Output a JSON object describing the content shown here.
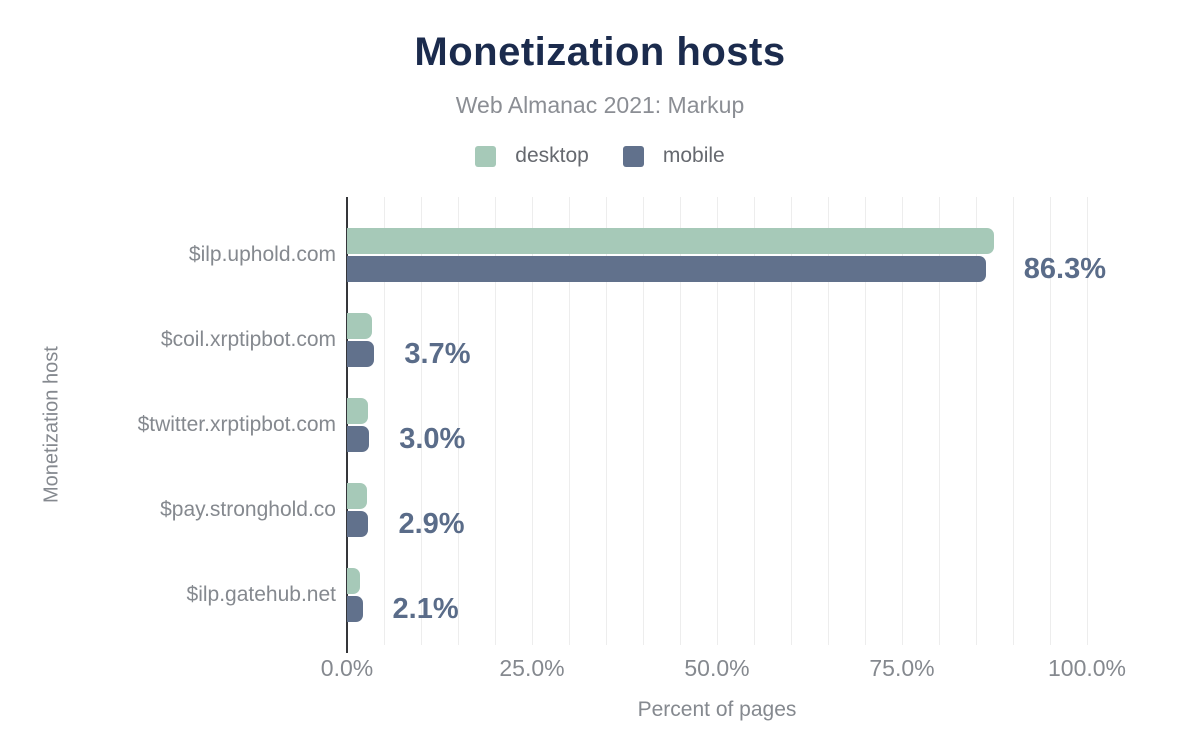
{
  "chart": {
    "title": "Monetization hosts",
    "subtitle": "Web Almanac 2021: Markup",
    "y_axis": {
      "title": "Monetization host"
    },
    "x_axis": {
      "title": "Percent of pages",
      "ticks": [
        "0.0%",
        "25.0%",
        "50.0%",
        "75.0%",
        "100.0%"
      ],
      "tick_values": [
        0,
        25,
        50,
        75,
        100
      ],
      "minor_gridline_step_percent": 5
    },
    "colors": {
      "title": "#1b2b4d",
      "desktop": "#a6c9b8",
      "mobile": "#61718c",
      "value_label": "#5a6c89",
      "axis_text": "#85898f",
      "gridline": "#ededed",
      "axis_line": "#35363a"
    }
  },
  "chart_data": {
    "type": "bar",
    "orientation": "horizontal",
    "title": "Monetization hosts",
    "subtitle": "Web Almanac 2021: Markup",
    "xlabel": "Percent of pages",
    "ylabel": "Monetization host",
    "xlim": [
      0,
      100
    ],
    "legend_position": "top",
    "grid": true,
    "categories": [
      "$ilp.uphold.com",
      "$coil.xrptipbot.com",
      "$twitter.xrptipbot.com",
      "$pay.stronghold.co",
      "$ilp.gatehub.net"
    ],
    "series": [
      {
        "name": "desktop",
        "color": "#a6c9b8",
        "values": [
          87.4,
          3.4,
          2.9,
          2.7,
          1.8
        ]
      },
      {
        "name": "mobile",
        "color": "#61718c",
        "values": [
          86.3,
          3.7,
          3.0,
          2.9,
          2.1
        ]
      }
    ],
    "data_labels": [
      "86.3%",
      "3.7%",
      "3.0%",
      "2.9%",
      "2.1%"
    ],
    "data_labels_series": "mobile"
  }
}
